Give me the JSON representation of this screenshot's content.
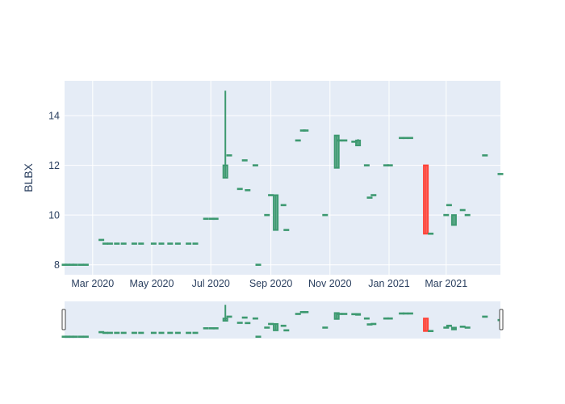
{
  "chart_data": {
    "type": "candlestick",
    "title": "",
    "xlabel": "",
    "ylabel": "BLBX",
    "ylim": [
      7.6,
      15.4
    ],
    "xlim": [
      "2020-02-01",
      "2021-04-26"
    ],
    "y_ticks": [
      "8",
      "10",
      "12",
      "14"
    ],
    "x_ticks": [
      {
        "date": "2020-03-01",
        "label": "Mar 2020"
      },
      {
        "date": "2020-05-01",
        "label": "May 2020"
      },
      {
        "date": "2020-07-01",
        "label": "Jul 2020"
      },
      {
        "date": "2020-09-01",
        "label": "Sep 2020"
      },
      {
        "date": "2020-11-01",
        "label": "Nov 2020"
      },
      {
        "date": "2021-01-01",
        "label": "Jan 2021"
      },
      {
        "date": "2021-03-01",
        "label": "Mar 2021"
      }
    ],
    "grid": true,
    "rangeslider": true,
    "colors": {
      "increasing": "#3d9970",
      "decreasing": "#ff4136",
      "plot_bg": "#e5ecf6",
      "grid": "#ffffff",
      "text": "#2a3f5f"
    },
    "series": [
      {
        "date": "2020-02-01",
        "open": 8.0,
        "high": 8.0,
        "low": 8.0,
        "close": 8.0
      },
      {
        "date": "2020-02-04",
        "open": 8.0,
        "high": 8.0,
        "low": 8.0,
        "close": 8.0
      },
      {
        "date": "2020-02-08",
        "open": 8.0,
        "high": 8.0,
        "low": 8.0,
        "close": 8.0
      },
      {
        "date": "2020-02-12",
        "open": 8.0,
        "high": 8.0,
        "low": 8.0,
        "close": 8.0
      },
      {
        "date": "2020-02-18",
        "open": 8.0,
        "high": 8.0,
        "low": 8.0,
        "close": 8.0
      },
      {
        "date": "2020-02-23",
        "open": 8.0,
        "high": 8.0,
        "low": 8.0,
        "close": 8.0
      },
      {
        "date": "2020-03-10",
        "open": 9.0,
        "high": 9.0,
        "low": 9.0,
        "close": 9.0
      },
      {
        "date": "2020-03-14",
        "open": 8.85,
        "high": 8.85,
        "low": 8.85,
        "close": 8.85
      },
      {
        "date": "2020-03-19",
        "open": 8.85,
        "high": 8.85,
        "low": 8.85,
        "close": 8.85
      },
      {
        "date": "2020-03-26",
        "open": 8.85,
        "high": 8.85,
        "low": 8.85,
        "close": 8.85
      },
      {
        "date": "2020-04-02",
        "open": 8.85,
        "high": 8.85,
        "low": 8.85,
        "close": 8.85
      },
      {
        "date": "2020-04-13",
        "open": 8.85,
        "high": 8.85,
        "low": 8.85,
        "close": 8.85
      },
      {
        "date": "2020-04-20",
        "open": 8.85,
        "high": 8.85,
        "low": 8.85,
        "close": 8.85
      },
      {
        "date": "2020-05-03",
        "open": 8.85,
        "high": 8.85,
        "low": 8.85,
        "close": 8.85
      },
      {
        "date": "2020-05-11",
        "open": 8.85,
        "high": 8.85,
        "low": 8.85,
        "close": 8.85
      },
      {
        "date": "2020-05-20",
        "open": 8.85,
        "high": 8.85,
        "low": 8.85,
        "close": 8.85
      },
      {
        "date": "2020-05-28",
        "open": 8.85,
        "high": 8.85,
        "low": 8.85,
        "close": 8.85
      },
      {
        "date": "2020-06-08",
        "open": 8.85,
        "high": 8.85,
        "low": 8.85,
        "close": 8.85
      },
      {
        "date": "2020-06-15",
        "open": 8.85,
        "high": 8.85,
        "low": 8.85,
        "close": 8.85
      },
      {
        "date": "2020-06-26",
        "open": 9.85,
        "high": 9.85,
        "low": 9.85,
        "close": 9.85
      },
      {
        "date": "2020-07-02",
        "open": 9.85,
        "high": 9.85,
        "low": 9.85,
        "close": 9.85
      },
      {
        "date": "2020-07-06",
        "open": 9.85,
        "high": 9.85,
        "low": 9.85,
        "close": 9.85
      },
      {
        "date": "2020-07-16",
        "open": 11.5,
        "high": 15.0,
        "low": 11.5,
        "close": 12.0
      },
      {
        "date": "2020-07-20",
        "open": 12.4,
        "high": 12.4,
        "low": 12.4,
        "close": 12.4
      },
      {
        "date": "2020-07-31",
        "open": 11.05,
        "high": 11.05,
        "low": 11.05,
        "close": 11.05
      },
      {
        "date": "2020-08-05",
        "open": 12.2,
        "high": 12.2,
        "low": 12.2,
        "close": 12.2
      },
      {
        "date": "2020-08-08",
        "open": 11.0,
        "high": 11.0,
        "low": 11.0,
        "close": 11.0
      },
      {
        "date": "2020-08-16",
        "open": 12.0,
        "high": 12.0,
        "low": 12.0,
        "close": 12.0
      },
      {
        "date": "2020-08-19",
        "open": 8.0,
        "high": 8.0,
        "low": 8.0,
        "close": 8.0
      },
      {
        "date": "2020-08-28",
        "open": 10.0,
        "high": 10.0,
        "low": 10.0,
        "close": 10.0
      },
      {
        "date": "2020-09-01",
        "open": 10.8,
        "high": 10.8,
        "low": 10.8,
        "close": 10.8
      },
      {
        "date": "2020-09-06",
        "open": 9.4,
        "high": 10.8,
        "low": 9.4,
        "close": 10.8
      },
      {
        "date": "2020-09-14",
        "open": 10.4,
        "high": 10.4,
        "low": 10.4,
        "close": 10.4
      },
      {
        "date": "2020-09-17",
        "open": 9.4,
        "high": 9.4,
        "low": 9.4,
        "close": 9.4
      },
      {
        "date": "2020-09-29",
        "open": 13.0,
        "high": 13.0,
        "low": 13.0,
        "close": 13.0
      },
      {
        "date": "2020-10-04",
        "open": 13.4,
        "high": 13.4,
        "low": 13.4,
        "close": 13.4
      },
      {
        "date": "2020-10-07",
        "open": 13.4,
        "high": 13.4,
        "low": 13.4,
        "close": 13.4
      },
      {
        "date": "2020-10-27",
        "open": 10.0,
        "high": 10.0,
        "low": 10.0,
        "close": 10.0
      },
      {
        "date": "2020-11-08",
        "open": 11.9,
        "high": 13.2,
        "low": 11.9,
        "close": 13.2
      },
      {
        "date": "2020-11-11",
        "open": 13.0,
        "high": 13.0,
        "low": 13.0,
        "close": 13.0
      },
      {
        "date": "2020-11-16",
        "open": 13.0,
        "high": 13.0,
        "low": 13.0,
        "close": 13.0
      },
      {
        "date": "2020-11-26",
        "open": 12.95,
        "high": 12.95,
        "low": 12.95,
        "close": 12.95
      },
      {
        "date": "2020-11-30",
        "open": 12.8,
        "high": 13.05,
        "low": 12.8,
        "close": 13.0
      },
      {
        "date": "2020-12-09",
        "open": 12.0,
        "high": 12.0,
        "low": 12.0,
        "close": 12.0
      },
      {
        "date": "2020-12-12",
        "open": 10.7,
        "high": 10.7,
        "low": 10.7,
        "close": 10.7
      },
      {
        "date": "2020-12-16",
        "open": 10.8,
        "high": 10.8,
        "low": 10.8,
        "close": 10.8
      },
      {
        "date": "2020-12-29",
        "open": 12.0,
        "high": 12.0,
        "low": 12.0,
        "close": 12.0
      },
      {
        "date": "2021-01-02",
        "open": 12.0,
        "high": 12.0,
        "low": 12.0,
        "close": 12.0
      },
      {
        "date": "2021-01-14",
        "open": 13.1,
        "high": 13.1,
        "low": 13.1,
        "close": 13.1
      },
      {
        "date": "2021-01-18",
        "open": 13.1,
        "high": 13.1,
        "low": 13.1,
        "close": 13.1
      },
      {
        "date": "2021-01-23",
        "open": 13.1,
        "high": 13.1,
        "low": 13.1,
        "close": 13.1
      },
      {
        "date": "2021-02-08",
        "open": 12.0,
        "high": 12.0,
        "low": 9.25,
        "close": 9.25
      },
      {
        "date": "2021-02-13",
        "open": 9.25,
        "high": 9.25,
        "low": 9.25,
        "close": 9.25
      },
      {
        "date": "2021-03-01",
        "open": 10.0,
        "high": 10.0,
        "low": 10.0,
        "close": 10.0
      },
      {
        "date": "2021-03-04",
        "open": 10.4,
        "high": 10.4,
        "low": 10.4,
        "close": 10.4
      },
      {
        "date": "2021-03-09",
        "open": 9.6,
        "high": 10.0,
        "low": 9.6,
        "close": 10.0
      },
      {
        "date": "2021-03-18",
        "open": 10.2,
        "high": 10.2,
        "low": 10.2,
        "close": 10.2
      },
      {
        "date": "2021-03-23",
        "open": 10.0,
        "high": 10.0,
        "low": 10.0,
        "close": 10.0
      },
      {
        "date": "2021-04-10",
        "open": 12.4,
        "high": 12.4,
        "low": 12.4,
        "close": 12.4
      },
      {
        "date": "2021-04-26",
        "open": 11.65,
        "high": 11.65,
        "low": 11.65,
        "close": 11.65
      }
    ]
  }
}
